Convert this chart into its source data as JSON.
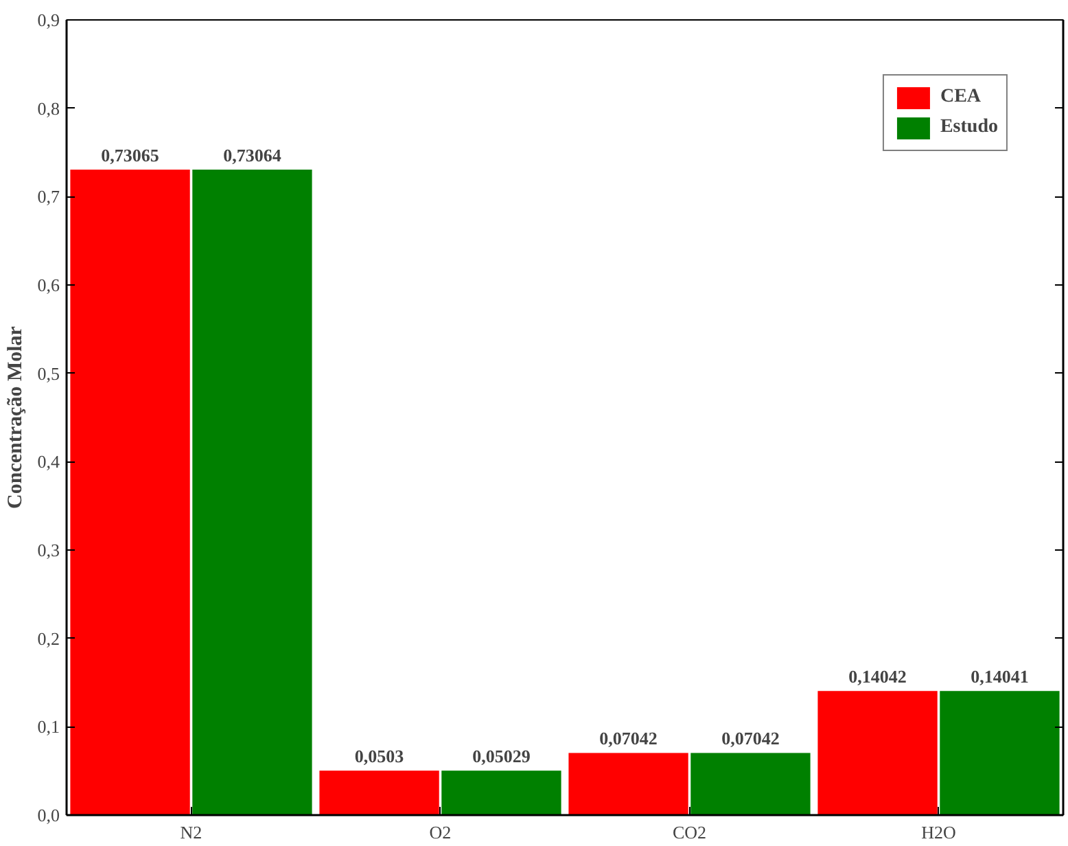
{
  "chart_data": {
    "type": "bar",
    "ylabel": "Concentração Molar",
    "categories": [
      "N2",
      "O2",
      "CO2",
      "H2O"
    ],
    "series": [
      {
        "name": "CEA",
        "color": "#ff0000",
        "values": [
          0.73065,
          0.0503,
          0.07042,
          0.14042
        ],
        "value_labels": [
          "0,73065",
          "0,0503",
          "0,07042",
          "0,14042"
        ]
      },
      {
        "name": "Estudo",
        "color": "#008000",
        "values": [
          0.73064,
          0.05029,
          0.07042,
          0.14041
        ],
        "value_labels": [
          "0,73064",
          "0,05029",
          "0,07042",
          "0,14041"
        ]
      }
    ],
    "ylim": [
      0,
      0.9
    ],
    "yticks": [
      {
        "value": 0,
        "label": "0,0"
      },
      {
        "value": 0.1,
        "label": "0,1"
      },
      {
        "value": 0.2,
        "label": "0,2"
      },
      {
        "value": 0.3,
        "label": "0,3"
      },
      {
        "value": 0.4,
        "label": "0,4"
      },
      {
        "value": 0.5,
        "label": "0,5"
      },
      {
        "value": 0.6,
        "label": "0,6"
      },
      {
        "value": 0.7,
        "label": "0,7"
      },
      {
        "value": 0.8,
        "label": "0,8"
      },
      {
        "value": 0.9,
        "label": "0,9"
      }
    ],
    "grid": false,
    "legend": "top right"
  }
}
